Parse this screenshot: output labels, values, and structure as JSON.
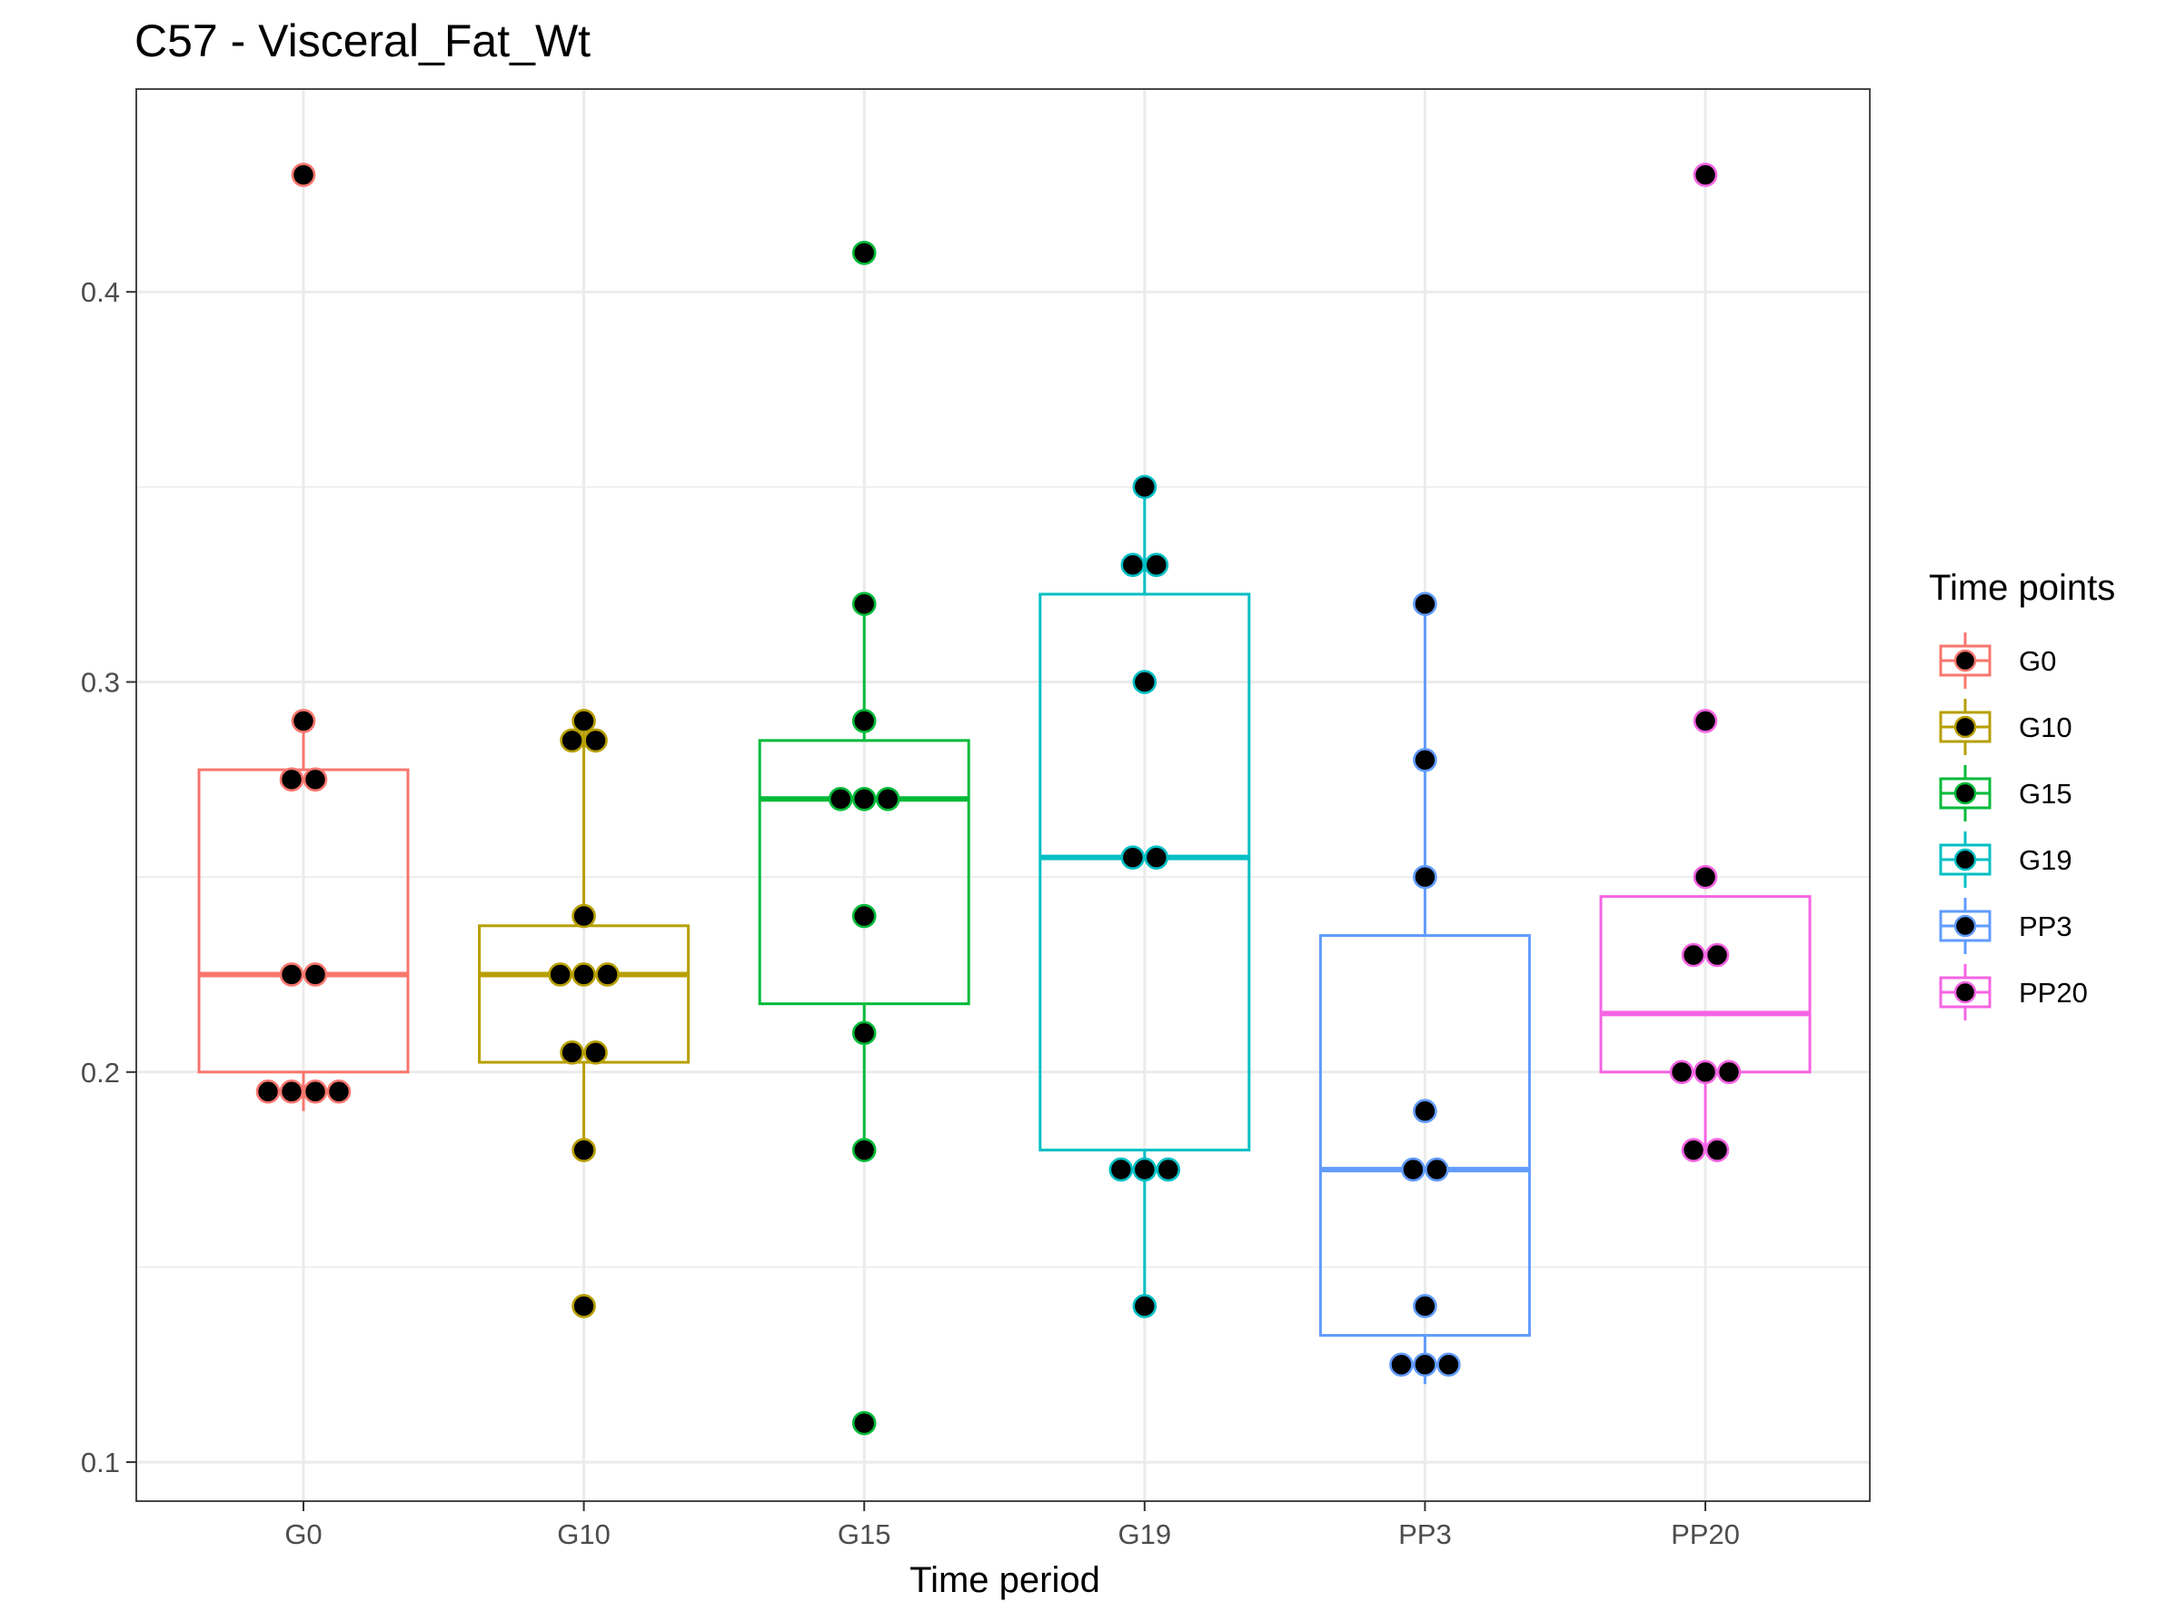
{
  "chart_data": {
    "type": "box",
    "title": "C57 - Visceral_Fat_Wt",
    "xlabel": "Time period",
    "ylabel": "",
    "ylim": [
      0.09,
      0.452
    ],
    "yticks": [
      0.1,
      0.2,
      0.3,
      0.4
    ],
    "ytick_labels": [
      "0.1",
      "0.2",
      "0.3",
      "0.4"
    ],
    "categories": [
      "G0",
      "G10",
      "G15",
      "G19",
      "PP3",
      "PP20"
    ],
    "grid": true,
    "legend": {
      "title": "Time points",
      "position": "right"
    },
    "series": [
      {
        "name": "G0",
        "color": "#F8766D",
        "box": {
          "whisker_low": 0.19,
          "q1": 0.2,
          "median": 0.225,
          "q3": 0.2775,
          "whisker_high": 0.29
        },
        "points": [
          0.43,
          0.29,
          0.275,
          0.275,
          0.225,
          0.225,
          0.195,
          0.195,
          0.195,
          0.195
        ]
      },
      {
        "name": "G10",
        "color": "#B79F00",
        "box": {
          "whisker_low": 0.18,
          "q1": 0.2025,
          "median": 0.225,
          "q3": 0.2375,
          "whisker_high": 0.29
        },
        "points": [
          0.29,
          0.285,
          0.285,
          0.24,
          0.225,
          0.225,
          0.225,
          0.205,
          0.205,
          0.18,
          0.14
        ]
      },
      {
        "name": "G15",
        "color": "#00BA38",
        "box": {
          "whisker_low": 0.18,
          "q1": 0.2175,
          "median": 0.27,
          "q3": 0.285,
          "whisker_high": 0.32
        },
        "points": [
          0.41,
          0.32,
          0.29,
          0.27,
          0.27,
          0.27,
          0.24,
          0.21,
          0.18,
          0.11
        ]
      },
      {
        "name": "G19",
        "color": "#00BFC4",
        "box": {
          "whisker_low": 0.14,
          "q1": 0.18,
          "median": 0.255,
          "q3": 0.3225,
          "whisker_high": 0.35
        },
        "points": [
          0.35,
          0.33,
          0.33,
          0.3,
          0.255,
          0.255,
          0.175,
          0.175,
          0.175,
          0.14
        ]
      },
      {
        "name": "PP3",
        "color": "#619CFF",
        "box": {
          "whisker_low": 0.12,
          "q1": 0.1325,
          "median": 0.175,
          "q3": 0.235,
          "whisker_high": 0.32
        },
        "points": [
          0.32,
          0.28,
          0.25,
          0.19,
          0.175,
          0.175,
          0.14,
          0.125,
          0.125,
          0.125
        ]
      },
      {
        "name": "PP20",
        "color": "#F564E3",
        "box": {
          "whisker_low": 0.18,
          "q1": 0.2,
          "median": 0.215,
          "q3": 0.245,
          "whisker_high": 0.245
        },
        "points": [
          0.43,
          0.29,
          0.25,
          0.23,
          0.23,
          0.2,
          0.2,
          0.2,
          0.18,
          0.18
        ]
      }
    ]
  }
}
